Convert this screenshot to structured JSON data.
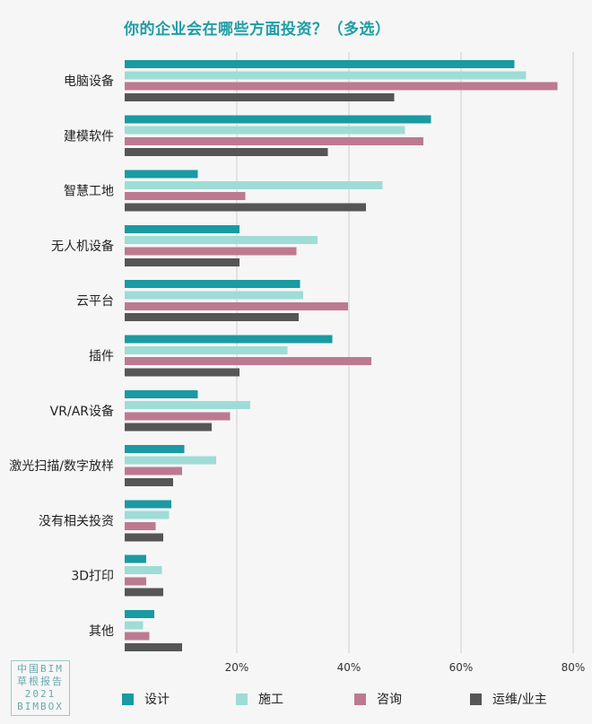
{
  "chart_data": {
    "type": "bar",
    "orientation": "horizontal",
    "title": "你的企业会在哪些方面投资？（多选）",
    "categories": [
      "电脑设备",
      "建模软件",
      "智慧工地",
      "无人机设备",
      "云平台",
      "插件",
      "VR/AR设备",
      "激光扫描/数字放样",
      "没有相关投资",
      "3D打印",
      "其他"
    ],
    "series": [
      {
        "name": "设计",
        "color": "#1a9aa2",
        "values": [
          69.5,
          54.6,
          13.0,
          20.5,
          31.3,
          37.0,
          13.0,
          10.6,
          8.3,
          3.8,
          5.3
        ]
      },
      {
        "name": "施工",
        "color": "#9fdcd6",
        "values": [
          71.6,
          50.0,
          46.0,
          34.4,
          31.8,
          29.0,
          22.4,
          16.3,
          7.9,
          6.6,
          3.3
        ]
      },
      {
        "name": "咨询",
        "color": "#bc7a90",
        "values": [
          77.2,
          53.3,
          21.5,
          30.6,
          39.8,
          44.0,
          18.8,
          10.2,
          5.5,
          3.8,
          4.4
        ]
      },
      {
        "name": "运维/业主",
        "color": "#565656",
        "values": [
          48.1,
          36.2,
          43.0,
          20.5,
          31.0,
          20.5,
          15.5,
          8.6,
          6.9,
          6.9,
          10.2
        ]
      }
    ],
    "xlim": [
      0,
      80
    ],
    "xticks": [
      20,
      40,
      60,
      80
    ],
    "xtick_labels": [
      "20%",
      "40%",
      "60%",
      "80%"
    ],
    "grid": true,
    "legend_position": "bottom"
  },
  "watermark": {
    "lines": [
      "中国BIM",
      "草根报告",
      "2021",
      "BIMBOX"
    ]
  }
}
